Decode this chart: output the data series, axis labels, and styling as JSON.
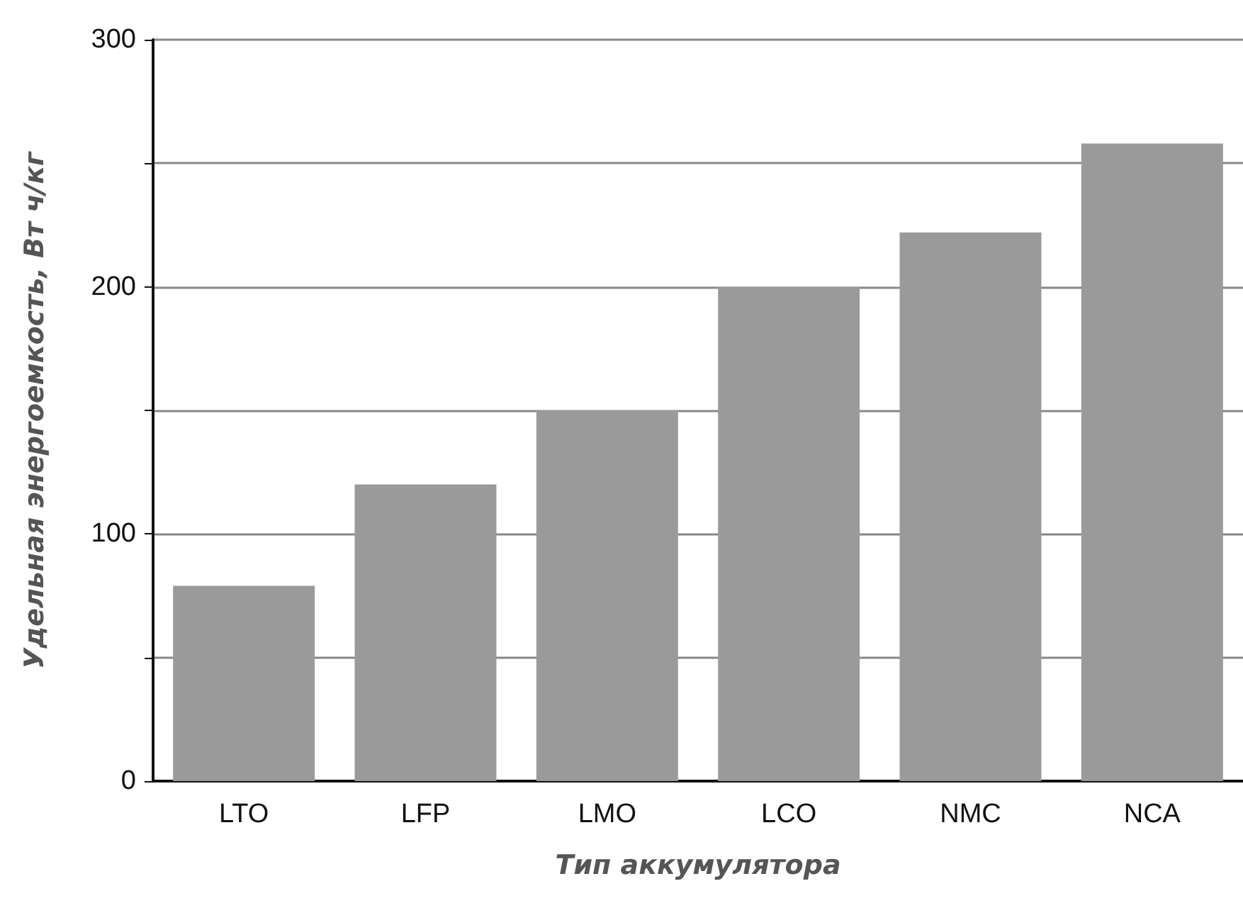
{
  "chart_data": {
    "type": "bar",
    "xlabel": "Тип аккумулятора",
    "ylabel": "Удельная энергоемкость, Вт ч/кг",
    "categories": [
      "LTO",
      "LFP",
      "LMO",
      "LCO",
      "NMC",
      "NCA"
    ],
    "values": [
      79,
      120,
      150,
      200,
      222,
      258
    ],
    "color": "#9a9a9a",
    "ylim": [
      0,
      300
    ],
    "yticks": [
      0,
      {
        "value": 50,
        "label": null
      },
      100,
      {
        "value": 150,
        "label": null
      },
      200,
      {
        "value": 250,
        "label": null
      },
      300
    ],
    "grid": true
  }
}
